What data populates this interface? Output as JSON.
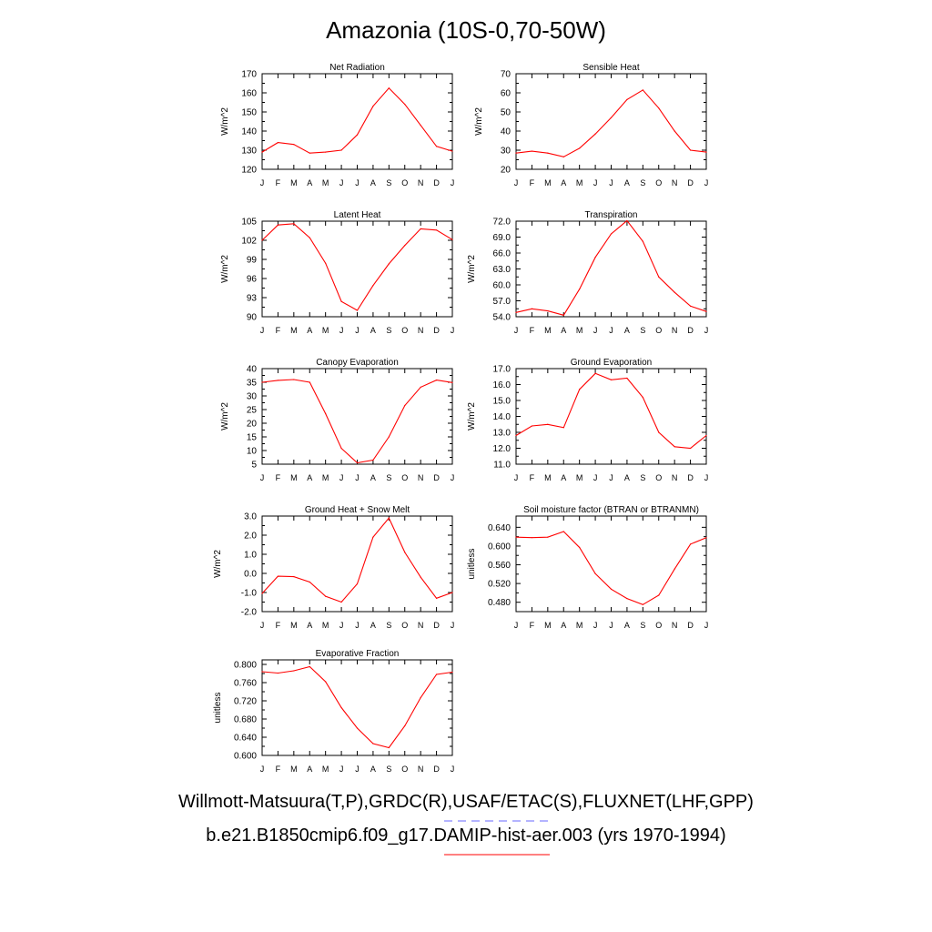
{
  "page": {
    "title": "Amazonia (10S-0,70-50W)"
  },
  "legend": {
    "obs_label": "Willmott-Matsuura(T,P),GRDC(R),USAF/ETAC(S),FLUXNET(LHF,GPP)",
    "obs_color": "#6a6aff",
    "model_label": "b.e21.B1850cmip6.f09_g17.DAMIP-hist-aer.003 (yrs 1970-1994)",
    "model_color": "#ff0000"
  },
  "chart_data": [
    {
      "type": "line",
      "title": "Net Radiation",
      "ylabel": "W/m^2",
      "categories": [
        "J",
        "F",
        "M",
        "A",
        "M",
        "J",
        "J",
        "A",
        "S",
        "O",
        "N",
        "D",
        "J"
      ],
      "ylim": [
        120,
        170
      ],
      "yticks": [
        "120",
        "130",
        "140",
        "150",
        "160",
        "170"
      ],
      "series": [
        {
          "color": "#ff0000",
          "values": [
            129,
            134,
            133,
            128.5,
            129,
            130,
            138,
            153,
            162.5,
            154,
            143,
            132,
            129.5
          ]
        }
      ]
    },
    {
      "type": "line",
      "title": "Sensible Heat",
      "ylabel": "W/m^2",
      "categories": [
        "J",
        "F",
        "M",
        "A",
        "M",
        "J",
        "J",
        "A",
        "S",
        "O",
        "N",
        "D",
        "J"
      ],
      "ylim": [
        20,
        70
      ],
      "yticks": [
        "20",
        "30",
        "40",
        "50",
        "60",
        "70"
      ],
      "series": [
        {
          "color": "#ff0000",
          "values": [
            28.5,
            29.5,
            28.5,
            26.5,
            31,
            38.5,
            47,
            56.5,
            61.5,
            52,
            40,
            30,
            29
          ]
        }
      ]
    },
    {
      "type": "line",
      "title": "Latent Heat",
      "ylabel": "W/m^2",
      "categories": [
        "J",
        "F",
        "M",
        "A",
        "M",
        "J",
        "J",
        "A",
        "S",
        "O",
        "N",
        "D",
        "J"
      ],
      "ylim": [
        90,
        105
      ],
      "yticks": [
        "90",
        "93",
        "96",
        "99",
        "102",
        "105"
      ],
      "series": [
        {
          "color": "#ff0000",
          "values": [
            102,
            104.4,
            104.6,
            102.4,
            98.4,
            92.4,
            91,
            94.9,
            98.3,
            101.2,
            103.8,
            103.6,
            102.1
          ]
        }
      ]
    },
    {
      "type": "line",
      "title": "Transpiration",
      "ylabel": "W/m^2",
      "categories": [
        "J",
        "F",
        "M",
        "A",
        "M",
        "J",
        "J",
        "A",
        "S",
        "O",
        "N",
        "D",
        "J"
      ],
      "ylim": [
        54,
        72
      ],
      "yticks": [
        "54.0",
        "57.0",
        "60.0",
        "63.0",
        "66.0",
        "69.0",
        "72.0"
      ],
      "series": [
        {
          "color": "#ff0000",
          "values": [
            54.8,
            55.5,
            55.1,
            54.3,
            59.2,
            65.2,
            69.6,
            72.1,
            68.2,
            61.5,
            58.6,
            56,
            55
          ]
        }
      ]
    },
    {
      "type": "line",
      "title": "Canopy Evaporation",
      "ylabel": "W/m^2",
      "categories": [
        "J",
        "F",
        "M",
        "A",
        "M",
        "J",
        "J",
        "A",
        "S",
        "O",
        "N",
        "D",
        "J"
      ],
      "ylim": [
        5,
        40
      ],
      "yticks": [
        "5",
        "10",
        "15",
        "20",
        "25",
        "30",
        "35",
        "40"
      ],
      "series": [
        {
          "color": "#ff0000",
          "values": [
            35,
            35.7,
            36,
            35,
            23.5,
            10.8,
            5.5,
            6.5,
            15,
            26.5,
            33.2,
            35.8,
            34.9
          ]
        }
      ]
    },
    {
      "type": "line",
      "title": "Ground Evaporation",
      "ylabel": "W/m^2",
      "categories": [
        "J",
        "F",
        "M",
        "A",
        "M",
        "J",
        "J",
        "A",
        "S",
        "O",
        "N",
        "D",
        "J"
      ],
      "ylim": [
        11,
        17
      ],
      "yticks": [
        "11.0",
        "12.0",
        "13.0",
        "14.0",
        "15.0",
        "16.0",
        "17.0"
      ],
      "series": [
        {
          "color": "#ff0000",
          "values": [
            12.8,
            13.4,
            13.5,
            13.3,
            15.7,
            16.7,
            16.3,
            16.4,
            15.2,
            13,
            12.1,
            12,
            12.8
          ]
        }
      ]
    },
    {
      "type": "line",
      "title": "Ground Heat + Snow Melt",
      "ylabel": "W/m^2",
      "categories": [
        "J",
        "F",
        "M",
        "A",
        "M",
        "J",
        "J",
        "A",
        "S",
        "O",
        "N",
        "D",
        "J"
      ],
      "ylim": [
        -2,
        3
      ],
      "yticks": [
        "-2.0",
        "-1.0",
        "0.0",
        "1.0",
        "2.0",
        "3.0"
      ],
      "series": [
        {
          "color": "#ff0000",
          "values": [
            -1.05,
            -0.15,
            -0.17,
            -0.45,
            -1.2,
            -1.5,
            -0.55,
            1.9,
            2.9,
            1.1,
            -0.2,
            -1.3,
            -1.0
          ]
        }
      ]
    },
    {
      "type": "line",
      "title": "Soil moisture factor (BTRAN or BTRANMN)",
      "ylabel": "unitless",
      "categories": [
        "J",
        "F",
        "M",
        "A",
        "M",
        "J",
        "J",
        "A",
        "S",
        "O",
        "N",
        "D",
        "J"
      ],
      "ylim": [
        0.46,
        0.664
      ],
      "yticks": [
        "0.480",
        "0.520",
        "0.560",
        "0.600",
        "0.640"
      ],
      "series": [
        {
          "color": "#ff0000",
          "values": [
            0.619,
            0.618,
            0.619,
            0.631,
            0.597,
            0.541,
            0.508,
            0.488,
            0.475,
            0.495,
            0.551,
            0.604,
            0.618
          ]
        }
      ]
    },
    {
      "type": "line",
      "title": "Evaporative Fraction",
      "ylabel": "unitless",
      "categories": [
        "J",
        "F",
        "M",
        "A",
        "M",
        "J",
        "J",
        "A",
        "S",
        "O",
        "N",
        "D",
        "J"
      ],
      "ylim": [
        0.6,
        0.81
      ],
      "yticks": [
        "0.600",
        "0.640",
        "0.680",
        "0.720",
        "0.760",
        "0.800"
      ],
      "series": [
        {
          "color": "#ff0000",
          "values": [
            0.784,
            0.781,
            0.786,
            0.795,
            0.762,
            0.705,
            0.66,
            0.626,
            0.617,
            0.665,
            0.727,
            0.778,
            0.783
          ]
        }
      ]
    }
  ]
}
